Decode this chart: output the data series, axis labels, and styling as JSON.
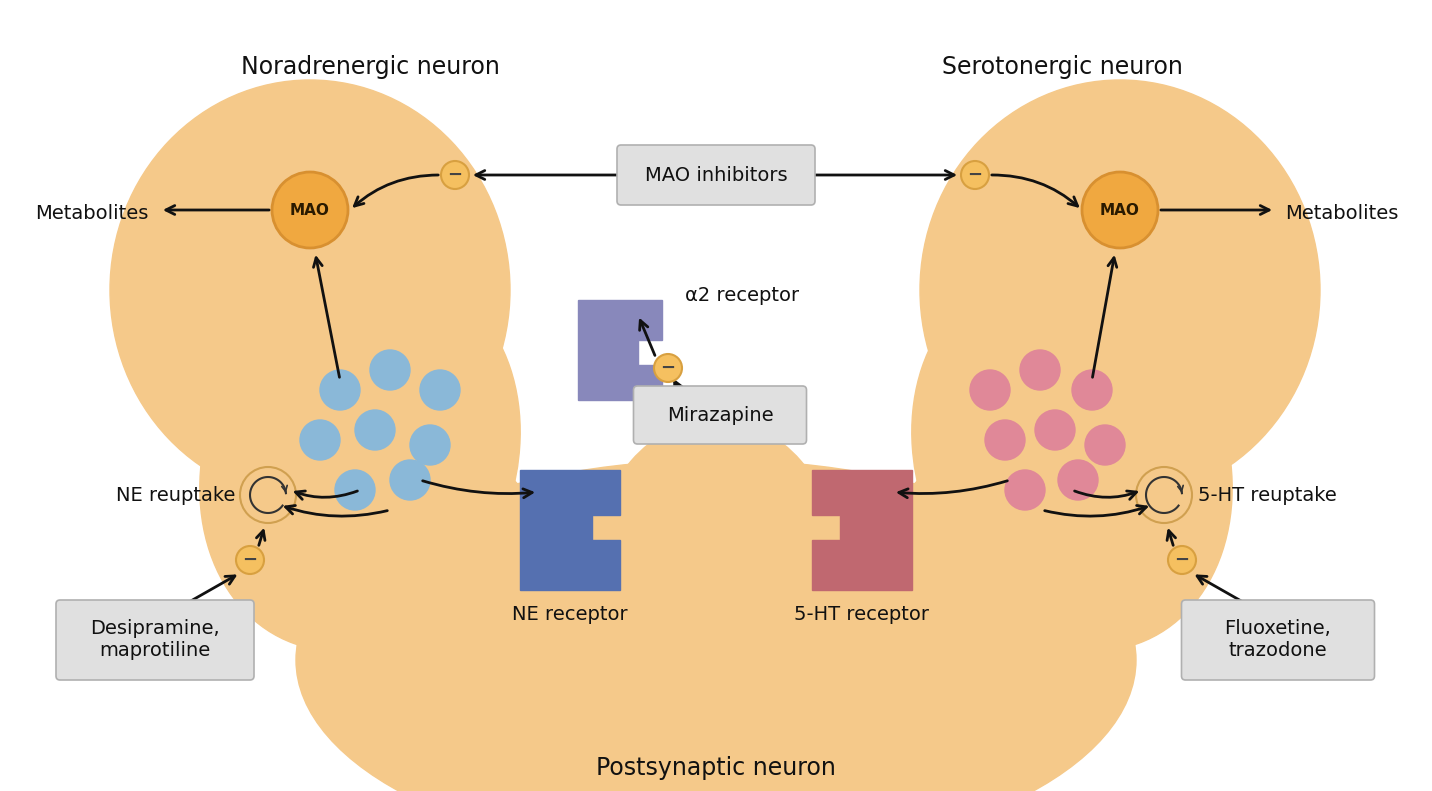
{
  "bg_color": "#ffffff",
  "neuron_fill": "#f5c98a",
  "mao_fill": "#f0a840",
  "mao_edge": "#d89030",
  "ne_dot_color": "#8ab8d8",
  "sht_dot_color": "#e08898",
  "ne_receptor_fill": "#5570b0",
  "sht_receptor_fill": "#c06870",
  "a2_receptor_fill": "#8888bb",
  "inhibitor_node_fill": "#f5c060",
  "inhibitor_node_edge": "#d8a040",
  "box_fill": "#e0e0e0",
  "box_edge": "#b0b0b0",
  "arrow_color": "#111111",
  "text_color": "#111111",
  "title_norad": "Noradrenergic neuron",
  "title_sero": "Serotonergic neuron",
  "title_post": "Postsynaptic neuron",
  "label_mao_inhibitors": "MAO inhibitors",
  "label_a2_receptor": "α2 receptor",
  "label_mirazapine": "Mirazapine",
  "label_metabolites_l": "Metabolites",
  "label_metabolites_r": "Metabolites",
  "label_ne_reuptake": "NE reuptake",
  "label_sht_reuptake": "5-HT reuptake",
  "label_ne_receptor": "NE receptor",
  "label_sht_receptor": "5-HT receptor",
  "label_desipramine": "Desipramine,\nmaprotiline",
  "label_fluoxetine": "Fluoxetine,\ntrazodone",
  "font_size_title": 17,
  "font_size_label": 14,
  "font_size_box": 14,
  "font_size_mao": 11
}
